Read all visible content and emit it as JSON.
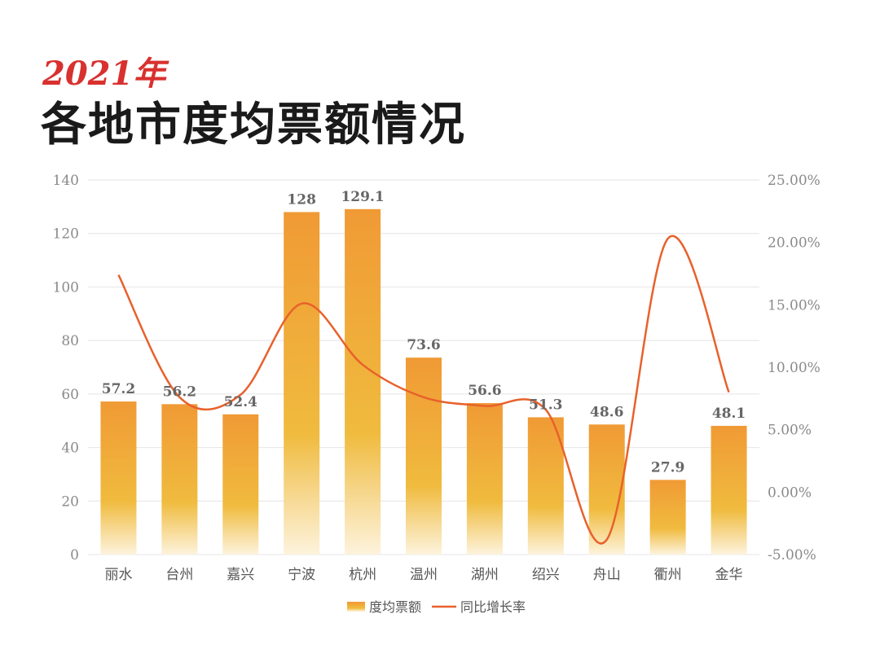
{
  "header": {
    "year": "2021年",
    "title": "各地市度均票额情况"
  },
  "chart_data": {
    "type": "bar+line",
    "title": "各地市度均票额情况",
    "categories": [
      "丽水",
      "台州",
      "嘉兴",
      "宁波",
      "杭州",
      "温州",
      "湖州",
      "绍兴",
      "舟山",
      "衢州",
      "金华"
    ],
    "series": [
      {
        "name": "度均票额",
        "type": "bar",
        "axis": "left",
        "values": [
          57.2,
          56.2,
          52.4,
          128,
          129.1,
          73.6,
          56.6,
          51.3,
          48.6,
          27.9,
          48.1
        ],
        "color": "#f0a030"
      },
      {
        "name": "同比增长率",
        "type": "line",
        "axis": "right",
        "values": [
          17.4,
          7.6,
          7.8,
          15.1,
          10.2,
          7.6,
          6.9,
          6.6,
          -3.8,
          20.3,
          8.0
        ],
        "unit": "%",
        "color": "#e8612c",
        "smooth": true
      }
    ],
    "left_axis": {
      "ylim": [
        0,
        140
      ],
      "ticks": [
        "0",
        "20",
        "40",
        "60",
        "80",
        "100",
        "120",
        "140"
      ]
    },
    "right_axis": {
      "ylim": [
        -5,
        25
      ],
      "ticks": [
        "-5.00%",
        "0.00%",
        "5.00%",
        "10.00%",
        "15.00%",
        "20.00%",
        "25.00%"
      ]
    },
    "grid": true,
    "legend": "bottom"
  }
}
